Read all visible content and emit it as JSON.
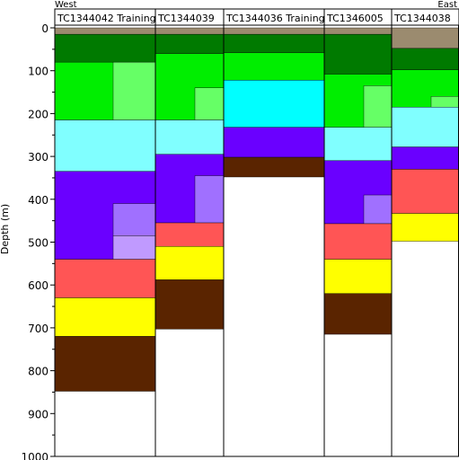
{
  "chart_data": {
    "type": "bar",
    "orientation": "stratigraphic-columns",
    "direction_left": "West",
    "direction_right": "East",
    "ylabel": "Depth (m)",
    "ylim": [
      0,
      1000
    ],
    "y_inverted": true,
    "yticks": [
      "0",
      "100",
      "200",
      "300",
      "400",
      "500",
      "600",
      "700",
      "800",
      "900",
      "1000"
    ],
    "grid": false,
    "columns": [
      {
        "name": "TC1344042 Training",
        "layers": [
          {
            "top": 0,
            "bottom": 15,
            "color": "#9b8b6f"
          },
          {
            "top": 15,
            "bottom": 80,
            "color": "#007a00"
          },
          {
            "top": 80,
            "bottom": 215,
            "color": "#00ee00",
            "subunits": [
              {
                "top": 80,
                "bottom": 215,
                "color": "#66ff66"
              }
            ]
          },
          {
            "top": 215,
            "bottom": 335,
            "color": "#80ffff"
          },
          {
            "top": 335,
            "bottom": 540,
            "color": "#6a00ff",
            "subunits": [
              {
                "top": 410,
                "bottom": 485,
                "color": "#a070ff"
              },
              {
                "top": 485,
                "bottom": 540,
                "color": "#c09aff"
              }
            ]
          },
          {
            "top": 540,
            "bottom": 630,
            "color": "#ff5555"
          },
          {
            "top": 630,
            "bottom": 720,
            "color": "#ffff00"
          },
          {
            "top": 720,
            "bottom": 848,
            "color": "#5a2400"
          }
        ]
      },
      {
        "name": "TC1344039",
        "layers": [
          {
            "top": 0,
            "bottom": 15,
            "color": "#9b8b6f"
          },
          {
            "top": 15,
            "bottom": 60,
            "color": "#007a00"
          },
          {
            "top": 60,
            "bottom": 215,
            "color": "#00ee00",
            "subunits": [
              {
                "top": 140,
                "bottom": 215,
                "color": "#66ff66"
              }
            ]
          },
          {
            "top": 215,
            "bottom": 295,
            "color": "#80ffff"
          },
          {
            "top": 295,
            "bottom": 455,
            "color": "#6a00ff",
            "subunits": [
              {
                "top": 345,
                "bottom": 455,
                "color": "#a070ff"
              }
            ]
          },
          {
            "top": 455,
            "bottom": 510,
            "color": "#ff5555"
          },
          {
            "top": 510,
            "bottom": 588,
            "color": "#ffff00"
          },
          {
            "top": 588,
            "bottom": 703,
            "color": "#5a2400"
          }
        ]
      },
      {
        "name": "TC1344036 Training",
        "layers": [
          {
            "top": 0,
            "bottom": 15,
            "color": "#9b8b6f"
          },
          {
            "top": 15,
            "bottom": 58,
            "color": "#007a00"
          },
          {
            "top": 58,
            "bottom": 122,
            "color": "#00ee00"
          },
          {
            "top": 122,
            "bottom": 232,
            "color": "#00ffff"
          },
          {
            "top": 232,
            "bottom": 302,
            "color": "#6a00ff"
          },
          {
            "top": 302,
            "bottom": 348,
            "color": "#5a2400"
          }
        ]
      },
      {
        "name": "TC1346005",
        "layers": [
          {
            "top": 0,
            "bottom": 15,
            "color": "#9b8b6f"
          },
          {
            "top": 15,
            "bottom": 108,
            "color": "#007a00"
          },
          {
            "top": 108,
            "bottom": 232,
            "color": "#00ee00",
            "subunits": [
              {
                "top": 135,
                "bottom": 232,
                "color": "#66ff66"
              }
            ]
          },
          {
            "top": 232,
            "bottom": 310,
            "color": "#80ffff"
          },
          {
            "top": 310,
            "bottom": 457,
            "color": "#6a00ff",
            "subunits": [
              {
                "top": 390,
                "bottom": 457,
                "color": "#a070ff"
              }
            ]
          },
          {
            "top": 457,
            "bottom": 540,
            "color": "#ff5555"
          },
          {
            "top": 540,
            "bottom": 620,
            "color": "#ffff00"
          },
          {
            "top": 620,
            "bottom": 715,
            "color": "#5a2400"
          }
        ]
      },
      {
        "name": "TC1344038",
        "layers": [
          {
            "top": 0,
            "bottom": 48,
            "color": "#9b8b6f"
          },
          {
            "top": 48,
            "bottom": 98,
            "color": "#007a00"
          },
          {
            "top": 98,
            "bottom": 185,
            "color": "#00ee00",
            "subunits": [
              {
                "top": 160,
                "bottom": 185,
                "color": "#66ff66"
              }
            ]
          },
          {
            "top": 185,
            "bottom": 278,
            "color": "#80ffff"
          },
          {
            "top": 278,
            "bottom": 330,
            "color": "#6a00ff"
          },
          {
            "top": 330,
            "bottom": 433,
            "color": "#ff5555"
          },
          {
            "top": 433,
            "bottom": 498,
            "color": "#ffff00"
          }
        ]
      }
    ]
  }
}
